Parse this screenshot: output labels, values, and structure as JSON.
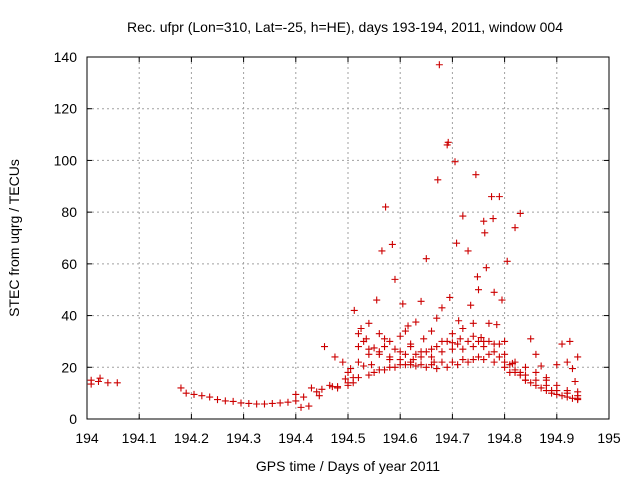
{
  "chart_data": {
    "type": "scatter",
    "title": "Rec. ufpr (Lon=310, Lat=-25, h=HE), days 193-194, 2011, window 004",
    "xlabel": "GPS time / Days of year 2011",
    "ylabel": "STEC from uqrg / TECUs",
    "xlim": [
      194,
      195
    ],
    "ylim": [
      0,
      140
    ],
    "x_ticks": [
      "194",
      "194.1",
      "194.2",
      "194.3",
      "194.4",
      "194.5",
      "194.6",
      "194.7",
      "194.8",
      "194.9",
      "195"
    ],
    "y_ticks": [
      "0",
      "20",
      "40",
      "60",
      "80",
      "100",
      "120",
      "140"
    ],
    "grid": true,
    "marker": "+",
    "series": [
      {
        "name": "STEC",
        "color": "#cc0000",
        "points": [
          [
            194.008,
            13.5
          ],
          [
            194.008,
            15
          ],
          [
            194.022,
            14.5
          ],
          [
            194.025,
            15.8
          ],
          [
            194.04,
            14
          ],
          [
            194.058,
            14
          ],
          [
            194.18,
            12
          ],
          [
            194.19,
            10
          ],
          [
            194.205,
            9.5
          ],
          [
            194.22,
            9
          ],
          [
            194.235,
            8.5
          ],
          [
            194.25,
            7.5
          ],
          [
            194.265,
            7
          ],
          [
            194.28,
            6.8
          ],
          [
            194.295,
            6.2
          ],
          [
            194.31,
            6
          ],
          [
            194.325,
            5.8
          ],
          [
            194.34,
            5.8
          ],
          [
            194.355,
            6
          ],
          [
            194.37,
            6.2
          ],
          [
            194.385,
            6.5
          ],
          [
            194.4,
            7
          ],
          [
            194.4,
            9.5
          ],
          [
            194.41,
            4.5
          ],
          [
            194.415,
            8.5
          ],
          [
            194.425,
            5
          ],
          [
            194.43,
            12
          ],
          [
            194.44,
            10.5
          ],
          [
            194.445,
            9
          ],
          [
            194.45,
            11.5
          ],
          [
            194.455,
            28
          ],
          [
            194.465,
            13
          ],
          [
            194.47,
            12.5
          ],
          [
            194.475,
            24
          ],
          [
            194.48,
            12.5
          ],
          [
            194.49,
            22
          ],
          [
            194.495,
            15.5
          ],
          [
            194.5,
            13
          ],
          [
            194.505,
            19.5
          ],
          [
            194.51,
            16
          ],
          [
            194.51,
            14
          ],
          [
            194.512,
            42
          ],
          [
            194.52,
            28
          ],
          [
            194.525,
            35
          ],
          [
            194.53,
            20.5
          ],
          [
            194.535,
            31
          ],
          [
            194.54,
            37
          ],
          [
            194.545,
            21
          ],
          [
            194.55,
            27.5
          ],
          [
            194.555,
            46
          ],
          [
            194.56,
            33
          ],
          [
            194.565,
            65
          ],
          [
            194.57,
            31
          ],
          [
            194.572,
            82
          ],
          [
            194.58,
            23
          ],
          [
            194.585,
            67.5
          ],
          [
            194.59,
            54
          ],
          [
            194.6,
            26
          ],
          [
            194.605,
            44.5
          ],
          [
            194.61,
            34
          ],
          [
            194.615,
            36
          ],
          [
            194.62,
            29
          ],
          [
            194.625,
            23
          ],
          [
            194.63,
            37.5
          ],
          [
            194.64,
            45.5
          ],
          [
            194.645,
            31
          ],
          [
            194.65,
            62
          ],
          [
            194.66,
            34
          ],
          [
            194.665,
            22
          ],
          [
            194.67,
            39
          ],
          [
            194.672,
            92.5
          ],
          [
            194.675,
            137
          ],
          [
            194.68,
            43
          ],
          [
            194.69,
            106
          ],
          [
            194.692,
            107
          ],
          [
            194.695,
            47
          ],
          [
            194.7,
            29.5
          ],
          [
            194.705,
            99.5
          ],
          [
            194.708,
            68
          ],
          [
            194.712,
            38
          ],
          [
            194.715,
            31
          ],
          [
            194.72,
            78.5
          ],
          [
            194.73,
            65
          ],
          [
            194.735,
            44
          ],
          [
            194.74,
            37
          ],
          [
            194.745,
            94.5
          ],
          [
            194.748,
            55
          ],
          [
            194.75,
            50
          ],
          [
            194.755,
            31.5
          ],
          [
            194.76,
            76.5
          ],
          [
            194.762,
            72
          ],
          [
            194.765,
            58.5
          ],
          [
            194.77,
            37
          ],
          [
            194.775,
            86
          ],
          [
            194.778,
            77.5
          ],
          [
            194.78,
            49
          ],
          [
            194.785,
            36.5
          ],
          [
            194.79,
            86
          ],
          [
            194.795,
            46
          ],
          [
            194.8,
            30
          ],
          [
            194.805,
            61
          ],
          [
            194.81,
            18
          ],
          [
            194.815,
            21.5
          ],
          [
            194.82,
            74
          ],
          [
            194.83,
            79.5
          ],
          [
            194.83,
            17
          ],
          [
            194.84,
            15
          ],
          [
            194.85,
            31
          ],
          [
            194.86,
            25
          ],
          [
            194.87,
            20.5
          ],
          [
            194.88,
            16
          ],
          [
            194.89,
            11
          ],
          [
            194.9,
            21
          ],
          [
            194.91,
            29
          ],
          [
            194.92,
            22
          ],
          [
            194.925,
            30
          ],
          [
            194.93,
            19.5
          ],
          [
            194.935,
            14.5
          ],
          [
            194.94,
            24
          ],
          [
            194.94,
            10.5
          ],
          [
            194.52,
            33
          ],
          [
            194.53,
            30
          ],
          [
            194.54,
            27
          ],
          [
            194.56,
            26
          ],
          [
            194.58,
            30
          ],
          [
            194.6,
            32
          ],
          [
            194.62,
            28
          ],
          [
            194.64,
            26
          ],
          [
            194.66,
            27
          ],
          [
            194.68,
            30
          ],
          [
            194.7,
            33
          ],
          [
            194.72,
            35
          ],
          [
            194.74,
            32
          ],
          [
            194.76,
            30
          ],
          [
            194.78,
            29
          ],
          [
            194.8,
            25
          ],
          [
            194.82,
            22
          ],
          [
            194.84,
            20
          ],
          [
            194.86,
            18
          ],
          [
            194.88,
            15
          ],
          [
            194.9,
            13
          ],
          [
            194.92,
            11
          ],
          [
            194.94,
            9
          ],
          [
            194.5,
            18
          ],
          [
            194.52,
            22
          ],
          [
            194.54,
            25
          ],
          [
            194.56,
            25
          ],
          [
            194.58,
            24
          ],
          [
            194.6,
            23
          ],
          [
            194.62,
            22
          ],
          [
            194.64,
            24
          ],
          [
            194.66,
            24
          ],
          [
            194.68,
            26
          ],
          [
            194.7,
            27
          ],
          [
            194.72,
            27
          ],
          [
            194.74,
            28
          ],
          [
            194.76,
            28
          ],
          [
            194.78,
            26
          ],
          [
            194.8,
            22
          ],
          [
            194.82,
            19
          ],
          [
            194.84,
            17
          ],
          [
            194.86,
            15
          ],
          [
            194.88,
            13
          ],
          [
            194.9,
            11
          ],
          [
            194.92,
            10
          ],
          [
            194.94,
            8
          ],
          [
            194.48,
            12
          ],
          [
            194.5,
            14
          ],
          [
            194.52,
            16
          ],
          [
            194.54,
            17
          ],
          [
            194.56,
            19
          ],
          [
            194.58,
            20
          ],
          [
            194.6,
            21
          ],
          [
            194.62,
            21
          ],
          [
            194.64,
            21
          ],
          [
            194.66,
            21
          ],
          [
            194.68,
            22
          ],
          [
            194.7,
            22
          ],
          [
            194.72,
            23
          ],
          [
            194.74,
            23
          ],
          [
            194.76,
            23
          ],
          [
            194.78,
            22
          ],
          [
            194.8,
            20
          ],
          [
            194.82,
            18
          ],
          [
            194.84,
            15
          ],
          [
            194.86,
            13
          ],
          [
            194.88,
            11
          ],
          [
            194.9,
            9.5
          ],
          [
            194.92,
            8.5
          ],
          [
            194.94,
            7.5
          ],
          [
            194.55,
            18
          ],
          [
            194.57,
            19
          ],
          [
            194.59,
            20
          ],
          [
            194.61,
            21
          ],
          [
            194.63,
            20.5
          ],
          [
            194.65,
            20
          ],
          [
            194.67,
            19.5
          ],
          [
            194.69,
            20
          ],
          [
            194.71,
            21
          ],
          [
            194.73,
            22
          ],
          [
            194.75,
            24
          ],
          [
            194.77,
            25
          ],
          [
            194.79,
            24
          ],
          [
            194.81,
            21
          ],
          [
            194.83,
            18
          ],
          [
            194.85,
            14
          ],
          [
            194.87,
            12
          ],
          [
            194.89,
            10
          ],
          [
            194.91,
            9
          ],
          [
            194.93,
            8
          ],
          [
            194.57,
            28
          ],
          [
            194.59,
            27
          ],
          [
            194.61,
            25
          ],
          [
            194.63,
            25
          ],
          [
            194.65,
            26
          ],
          [
            194.67,
            28
          ],
          [
            194.69,
            30
          ],
          [
            194.71,
            29
          ],
          [
            194.73,
            30
          ],
          [
            194.75,
            30
          ],
          [
            194.77,
            30
          ],
          [
            194.79,
            29
          ]
        ]
      }
    ]
  }
}
